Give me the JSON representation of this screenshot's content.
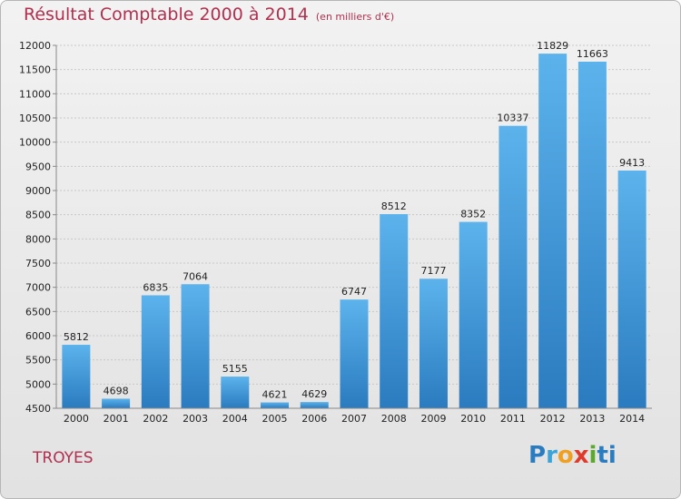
{
  "chart_data": {
    "type": "bar",
    "title": "Résultat Comptable 2000 à 2014",
    "subtitle": "(en milliers d'€)",
    "categories": [
      "2000",
      "2001",
      "2002",
      "2003",
      "2004",
      "2005",
      "2006",
      "2007",
      "2008",
      "2009",
      "2010",
      "2011",
      "2012",
      "2013",
      "2014"
    ],
    "values": [
      5812,
      4698,
      6835,
      7064,
      5155,
      4621,
      4629,
      6747,
      8512,
      7177,
      8352,
      10337,
      11829,
      11663,
      9413
    ],
    "ylim": [
      4500,
      12000
    ],
    "yticks": [
      4500,
      5000,
      5500,
      6000,
      6500,
      7000,
      7500,
      8000,
      8500,
      9000,
      9500,
      10000,
      10500,
      11000,
      11500,
      12000
    ],
    "grid": true,
    "bar_color": "#3a97dc"
  },
  "city": "TROYES",
  "logo": [
    "P",
    "r",
    "o",
    "x",
    "i",
    "ti"
  ]
}
